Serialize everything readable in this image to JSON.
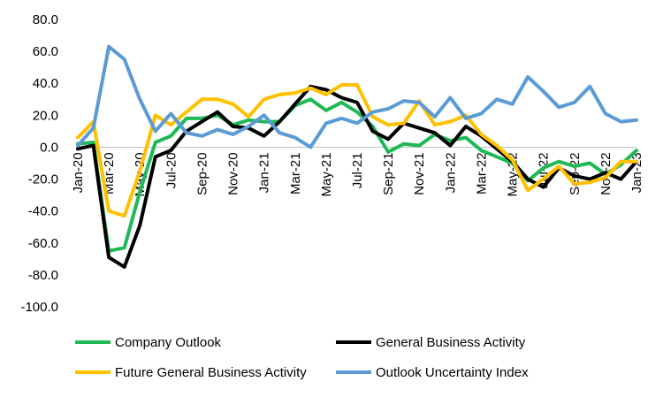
{
  "chart_data": {
    "type": "line",
    "title": "",
    "xlabel": "",
    "ylabel": "",
    "ylim": [
      -100,
      80
    ],
    "yticks": [
      "80.0",
      "60.0",
      "40.0",
      "20.0",
      "0.0",
      "-20.0",
      "-40.0",
      "-60.0",
      "-80.0",
      "-100.0"
    ],
    "ytick_values": [
      80,
      60,
      40,
      20,
      0,
      -20,
      -40,
      -60,
      -80,
      -100
    ],
    "grid": false,
    "legend_position": "bottom",
    "x": [
      "Jan-20",
      "Feb-20",
      "Mar-20",
      "Apr-20",
      "May-20",
      "Jun-20",
      "Jul-20",
      "Aug-20",
      "Sep-20",
      "Oct-20",
      "Nov-20",
      "Dec-20",
      "Jan-21",
      "Feb-21",
      "Mar-21",
      "Apr-21",
      "May-21",
      "Jun-21",
      "Jul-21",
      "Aug-21",
      "Sep-21",
      "Oct-21",
      "Nov-21",
      "Dec-21",
      "Jan-22",
      "Feb-22",
      "Mar-22",
      "Apr-22",
      "May-22",
      "Jun-22",
      "Jul-22",
      "Aug-22",
      "Sep-22",
      "Oct-22",
      "Nov-22",
      "Dec-22",
      "Jan-23"
    ],
    "xtick_labels": [
      "Jan-20",
      "Mar-20",
      "May-20",
      "Jul-20",
      "Sep-20",
      "Nov-20",
      "Jan-21",
      "Mar-21",
      "May-21",
      "Jul-21",
      "Sep-21",
      "Nov-21",
      "Jan-22",
      "Mar-22",
      "May-22",
      "Jul-22",
      "Sep-22",
      "Nov-22",
      "Jan-23"
    ],
    "series": [
      {
        "name": "Company Outlook",
        "color": "#1db954",
        "values": [
          2,
          3,
          -65,
          -63,
          -28,
          3,
          7,
          18,
          18,
          20,
          14,
          17,
          16,
          16,
          26,
          30,
          23,
          28,
          22,
          13,
          -3,
          2,
          1,
          8,
          4,
          6,
          -2,
          -6,
          -10,
          -21,
          -13,
          -9,
          -12,
          -10,
          -17,
          -11,
          -2
        ]
      },
      {
        "name": "General Business Activity",
        "color": "#000000",
        "values": [
          -1,
          1,
          -69,
          -75,
          -49,
          -6,
          -2,
          10,
          16,
          22,
          13,
          12,
          7,
          16,
          27,
          38,
          36,
          31,
          28,
          10,
          5,
          15,
          12,
          9,
          1,
          13,
          7,
          -1,
          -9,
          -20,
          -25,
          -13,
          -18,
          -20,
          -16,
          -20,
          -9
        ]
      },
      {
        "name": "Future General Business Activity",
        "color": "#ffc000",
        "values": [
          6,
          16,
          -40,
          -43,
          -15,
          20,
          14,
          22,
          30,
          30,
          27,
          19,
          30,
          33,
          34,
          37,
          33,
          39,
          39,
          19,
          14,
          15,
          29,
          14,
          16,
          20,
          8,
          1,
          -8,
          -27,
          -20,
          -12,
          -23,
          -22,
          -19,
          -9,
          -9
        ]
      },
      {
        "name": "Outlook Uncertainty Index",
        "color": "#5b9bd5",
        "values": [
          1,
          12,
          63,
          55,
          30,
          10,
          21,
          9,
          7,
          11,
          8,
          13,
          20,
          9,
          6,
          0,
          15,
          18,
          15,
          22,
          24,
          29,
          28,
          19,
          31,
          18,
          21,
          30,
          27,
          44,
          35,
          25,
          28,
          38,
          21,
          16,
          17
        ]
      }
    ]
  }
}
